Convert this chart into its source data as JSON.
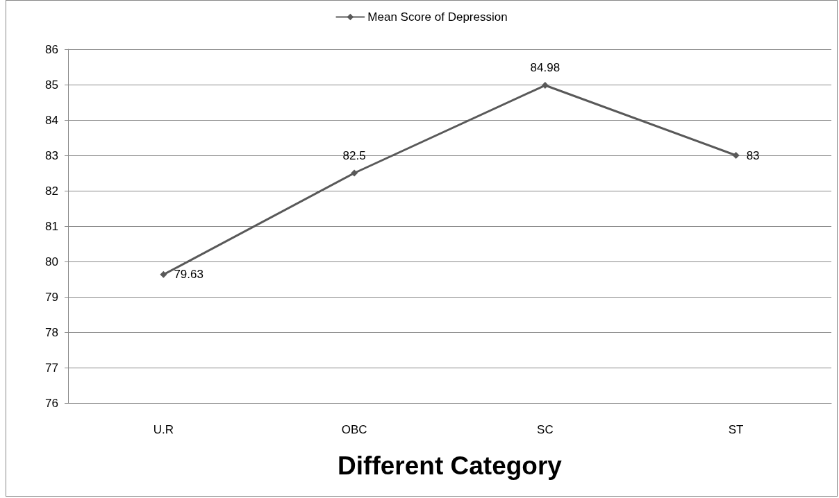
{
  "chart_data": {
    "type": "line",
    "xlabel": "Different Category",
    "categories": [
      "U.R",
      "OBC",
      "SC",
      "ST"
    ],
    "series": [
      {
        "name": "Mean Score of Depression",
        "color": "#595959",
        "values": [
          79.63,
          82.5,
          84.98,
          83
        ]
      }
    ],
    "ylim": [
      76,
      86
    ],
    "yticks": [
      76,
      77,
      78,
      79,
      80,
      81,
      82,
      83,
      84,
      85,
      86
    ],
    "grid": "y",
    "legend": "top",
    "marker": "diamond",
    "line_style": "solid",
    "data_labels": true
  }
}
